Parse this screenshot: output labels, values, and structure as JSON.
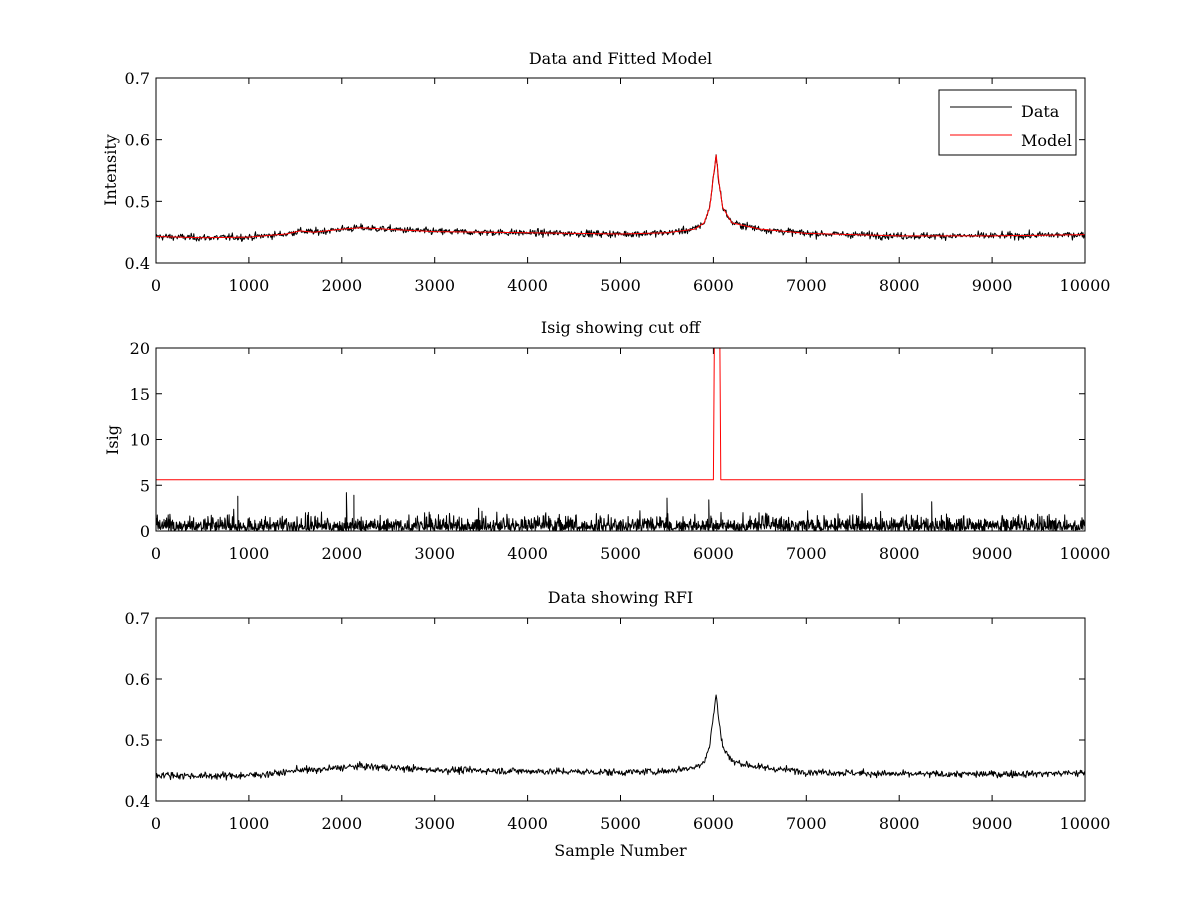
{
  "figure": {
    "background": "#ffffff"
  },
  "chart_data": [
    {
      "type": "line",
      "title": "Data and Fitted Model",
      "xlabel": "",
      "ylabel": "Intensity",
      "xlim": [
        0,
        10000
      ],
      "ylim": [
        0.4,
        0.7
      ],
      "xticks": [
        "0",
        "1000",
        "2000",
        "3000",
        "4000",
        "5000",
        "6000",
        "7000",
        "8000",
        "9000",
        "10000"
      ],
      "yticks": [
        "0.4",
        "0.5",
        "0.6",
        "0.7"
      ],
      "grid": false,
      "legend_position": "top-right",
      "series": [
        {
          "name": "Data",
          "color": "#000000",
          "style": "noisy",
          "noise": 0.004,
          "x": [
            0,
            500,
            1000,
            1400,
            1550,
            1700,
            2000,
            2200,
            2600,
            3000,
            4000,
            5000,
            5500,
            5800,
            5900,
            5960,
            6000,
            6030,
            6060,
            6100,
            6200,
            6500,
            7000,
            8000,
            9000,
            10000
          ],
          "y": [
            0.443,
            0.441,
            0.442,
            0.447,
            0.452,
            0.45,
            0.455,
            0.457,
            0.454,
            0.451,
            0.449,
            0.447,
            0.449,
            0.455,
            0.465,
            0.49,
            0.54,
            0.575,
            0.53,
            0.49,
            0.465,
            0.455,
            0.448,
            0.444,
            0.444,
            0.446
          ]
        },
        {
          "name": "Model",
          "color": "#ff0000",
          "style": "smooth",
          "x": [
            0,
            500,
            1000,
            1400,
            1550,
            1700,
            2000,
            2200,
            2600,
            3000,
            4000,
            5000,
            5500,
            5800,
            5900,
            5960,
            6000,
            6030,
            6060,
            6100,
            6200,
            6500,
            7000,
            8000,
            9000,
            10000
          ],
          "y": [
            0.443,
            0.441,
            0.442,
            0.447,
            0.452,
            0.45,
            0.455,
            0.457,
            0.454,
            0.451,
            0.449,
            0.447,
            0.449,
            0.455,
            0.465,
            0.49,
            0.54,
            0.575,
            0.53,
            0.49,
            0.465,
            0.455,
            0.448,
            0.444,
            0.444,
            0.446
          ]
        }
      ]
    },
    {
      "type": "line",
      "title": "Isig showing cut off",
      "xlabel": "",
      "ylabel": "Isig",
      "xlim": [
        0,
        10000
      ],
      "ylim": [
        0,
        20
      ],
      "xticks": [
        "0",
        "1000",
        "2000",
        "3000",
        "4000",
        "5000",
        "6000",
        "7000",
        "8000",
        "9000",
        "10000"
      ],
      "yticks": [
        "0",
        "5",
        "10",
        "15",
        "20"
      ],
      "grid": false,
      "legend_position": "none",
      "series": [
        {
          "color": "#000000",
          "style": "abs-noise",
          "x": [
            0,
            10000
          ],
          "y": [
            1.2,
            1.2
          ],
          "noise": 1.1,
          "spikes": [
            [
              880,
              3.8
            ],
            [
              2050,
              4.2
            ],
            [
              2130,
              3.9
            ],
            [
              5500,
              3.6
            ],
            [
              7600,
              4.1
            ],
            [
              5950,
              3.4
            ],
            [
              8350,
              3.2
            ]
          ]
        },
        {
          "color": "#ff0000",
          "style": "step",
          "x": [
            0,
            6000,
            6010,
            6070,
            6080,
            10000
          ],
          "y": [
            5.6,
            5.6,
            20,
            20,
            5.6,
            5.6
          ]
        }
      ]
    },
    {
      "type": "line",
      "title": "Data showing RFI",
      "xlabel": "Sample Number",
      "ylabel": "",
      "xlim": [
        0,
        10000
      ],
      "ylim": [
        0.4,
        0.7
      ],
      "xticks": [
        "0",
        "1000",
        "2000",
        "3000",
        "4000",
        "5000",
        "6000",
        "7000",
        "8000",
        "9000",
        "10000"
      ],
      "yticks": [
        "0.4",
        "0.5",
        "0.6",
        "0.7"
      ],
      "grid": false,
      "legend_position": "none",
      "series": [
        {
          "color": "#000000",
          "style": "noisy",
          "noise": 0.004,
          "x": [
            0,
            500,
            1000,
            1400,
            1550,
            1700,
            2000,
            2200,
            2600,
            3000,
            4000,
            5000,
            5500,
            5800,
            5900,
            5960,
            6000,
            6030,
            6060,
            6100,
            6200,
            6500,
            7000,
            8000,
            9000,
            10000
          ],
          "y": [
            0.443,
            0.441,
            0.442,
            0.447,
            0.452,
            0.45,
            0.455,
            0.457,
            0.454,
            0.451,
            0.449,
            0.447,
            0.449,
            0.455,
            0.465,
            0.49,
            0.54,
            0.575,
            0.53,
            0.49,
            0.465,
            0.455,
            0.448,
            0.444,
            0.444,
            0.446
          ]
        }
      ]
    }
  ]
}
